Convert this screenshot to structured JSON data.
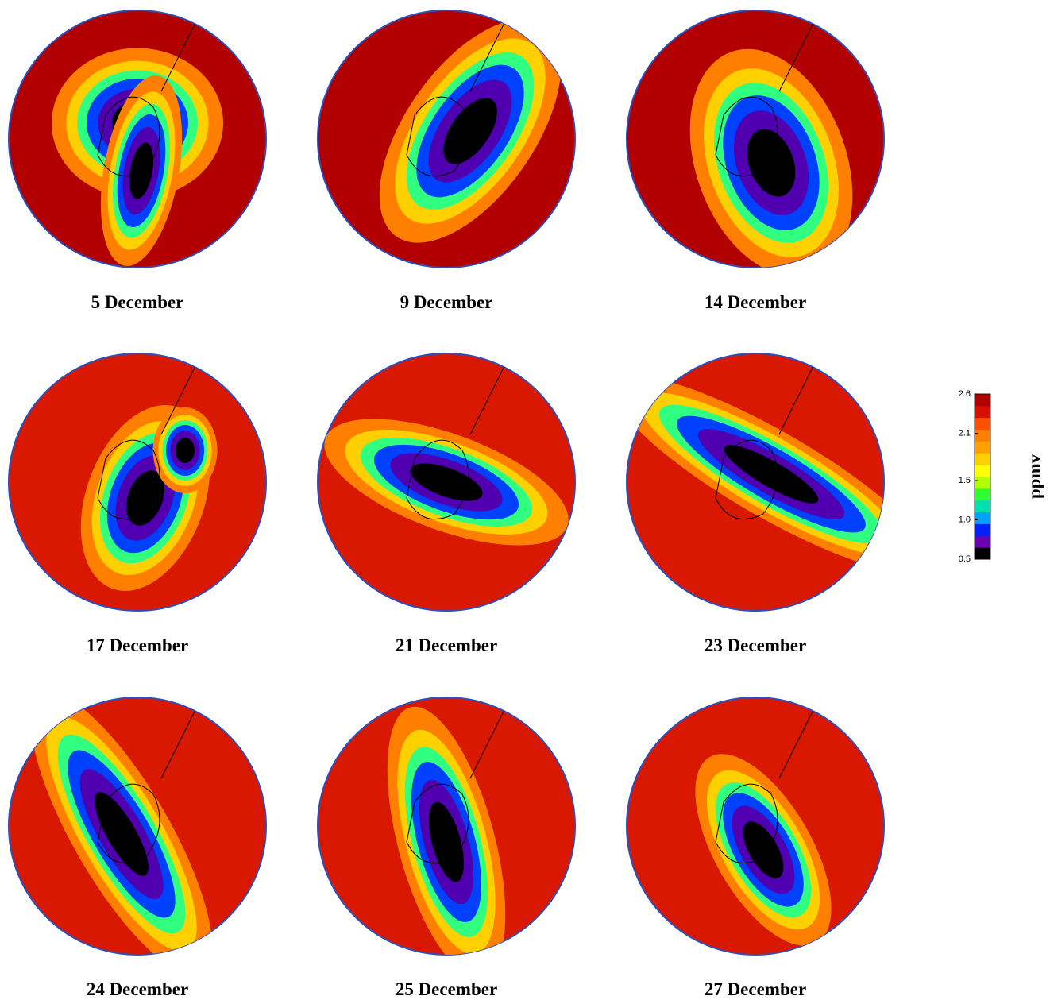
{
  "panels": [
    {
      "label": "5 December"
    },
    {
      "label": "9 December"
    },
    {
      "label": "14 December"
    },
    {
      "label": "17 December"
    },
    {
      "label": "21 December"
    },
    {
      "label": "23 December"
    },
    {
      "label": "24 December"
    },
    {
      "label": "25 December"
    },
    {
      "label": "27 December"
    }
  ],
  "colorbar": {
    "label": "ppmv",
    "range": [
      0.5,
      2.6
    ],
    "ticks": [
      {
        "value": 0.5,
        "label": "0.5"
      },
      {
        "value": 1,
        "label": "1.0"
      },
      {
        "value": 1.5,
        "label": "1.5"
      },
      {
        "value": 2.1,
        "label": "2.1"
      },
      {
        "value": 2.6,
        "label": "2.6"
      }
    ],
    "colors": [
      "#000000",
      "#6a00b0",
      "#0020ff",
      "#00a0ff",
      "#00e0b0",
      "#30ff30",
      "#b0ff00",
      "#ffff00",
      "#ffd000",
      "#ffa000",
      "#ff8000",
      "#ff5000",
      "#d81000",
      "#b00000"
    ]
  }
}
